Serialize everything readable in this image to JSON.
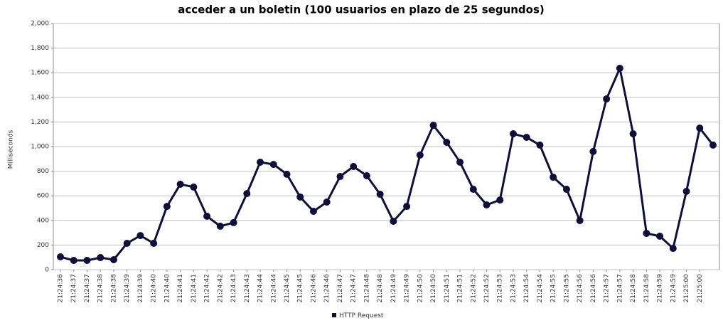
{
  "chart_data": {
    "type": "line",
    "title": "acceder a un boletin (100 usuarios en plazo de 25 segundos)",
    "y_label": "Milliseconds",
    "categories": [
      "21:24:36",
      "21:24:37",
      "21:24:37",
      "21:24:38",
      "21:24:38",
      "21:24:39",
      "21:24:39",
      "21:24:40",
      "21:24:40",
      "21:24:41",
      "21:24:41",
      "21:24:42",
      "21:24:42",
      "21:24:43",
      "21:24:43",
      "21:24:44",
      "21:24:44",
      "21:24:45",
      "21:24:45",
      "21:24:46",
      "21:24:46",
      "21:24:47",
      "21:24:47",
      "21:24:48",
      "21:24:48",
      "21:24:49",
      "21:24:49",
      "21:24:50",
      "21:24:50",
      "21:24:51",
      "21:24:51",
      "21:24:52",
      "21:24:52",
      "21:24:53",
      "21:24:53",
      "21:24:54",
      "21:24:54",
      "21:24:55",
      "21:24:55",
      "21:24:56",
      "21:24:56",
      "21:24:57",
      "21:24:57",
      "21:24:58",
      "21:24:58",
      "21:24:59",
      "21:24:59",
      "21:25:00",
      "21:25:00",
      null
    ],
    "series": [
      {
        "name": "HTTP Request",
        "color": "#0f0f3a",
        "values": [
          104,
          75,
          75,
          98,
          81,
          214,
          277,
          214,
          514,
          694,
          671,
          434,
          353,
          382,
          618,
          873,
          855,
          775,
          590,
          474,
          549,
          757,
          838,
          763,
          613,
          393,
          514,
          931,
          1173,
          1035,
          873,
          653,
          526,
          566,
          1104,
          1075,
          1012,
          751,
          653,
          399,
          960,
          1387,
          1636,
          1104,
          295,
          272,
          173,
          636,
          1150,
          1012
        ]
      }
    ],
    "ylim": [
      0,
      2000
    ],
    "yticks": [
      0,
      200,
      400,
      600,
      800,
      {
        "value": 1000,
        "label": "1,000"
      },
      {
        "value": 1200,
        "label": "1,200"
      },
      {
        "value": 1400,
        "label": "1,400"
      },
      {
        "value": 1600,
        "label": "1,600"
      },
      {
        "value": 1800,
        "label": "1,800"
      },
      {
        "value": 2000,
        "label": "2,000"
      }
    ],
    "grid": true,
    "legend": "bottom"
  }
}
